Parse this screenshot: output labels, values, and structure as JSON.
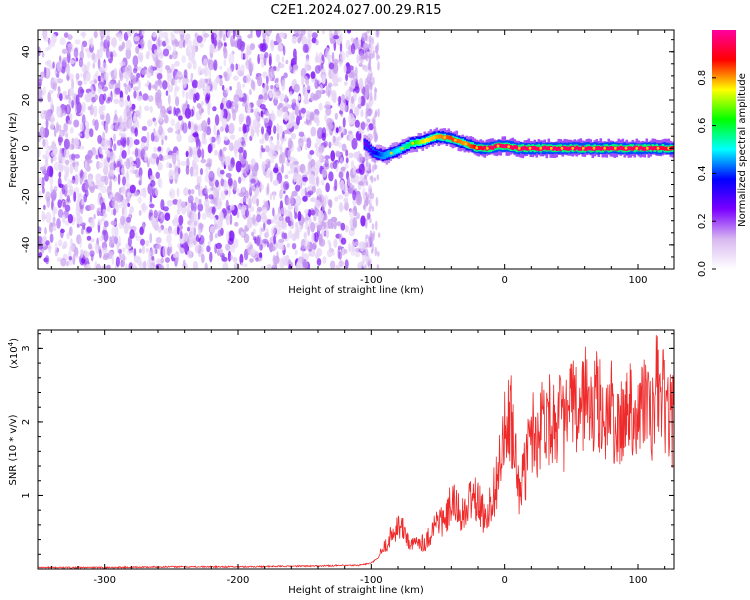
{
  "title": "C2E1.2024.027.00.29.R15",
  "chart_data": [
    {
      "type": "heatmap",
      "xlabel": "Height of straight line (km)",
      "ylabel": "Frequency (Hz)",
      "xlim": [
        -350,
        127
      ],
      "ylim": [
        -50,
        49
      ],
      "xticks": [
        -300,
        -200,
        -100,
        0,
        100
      ],
      "yticks": [
        -40,
        -20,
        0,
        20,
        40
      ],
      "noise_region_x": [
        -350,
        -100
      ],
      "ridge_line": {
        "x": [
          -105,
          -98,
          -90,
          -80,
          -70,
          -60,
          -50,
          -40,
          -30,
          -20,
          -12,
          -5,
          0,
          10,
          30,
          60,
          90,
          110,
          127
        ],
        "y": [
          2,
          -2,
          -3,
          -1,
          2,
          3,
          5,
          4,
          2,
          0,
          0,
          1,
          1,
          0,
          0,
          0,
          0,
          0,
          0
        ],
        "amplitude": [
          0.25,
          0.35,
          0.45,
          0.5,
          0.6,
          0.75,
          0.8,
          0.85,
          0.8,
          0.9,
          0.95,
          0.95,
          0.95,
          0.95,
          0.95,
          0.95,
          0.95,
          0.95,
          0.9
        ]
      },
      "colorbar": {
        "label": "Normalized spectral amplitude",
        "range": [
          0,
          1
        ],
        "ticks": [
          "0.0",
          "0.2",
          "0.4",
          "0.6",
          "0.8"
        ],
        "colors": [
          "#ffffff",
          "#d8b8f0",
          "#7b00ff",
          "#0000ff",
          "#00ffff",
          "#00ff00",
          "#ffff00",
          "#ff0000",
          "#ff00a0"
        ]
      }
    },
    {
      "type": "line",
      "xlabel": "Height of straight line (km)",
      "ylabel": "SNR (10 * v/v)",
      "y_multiplier_label": "(x10",
      "y_multiplier_exp": "4",
      "xlim": [
        -350,
        127
      ],
      "ylim": [
        0,
        3.25
      ],
      "xticks": [
        -300,
        -200,
        -100,
        0,
        100
      ],
      "yticks": [
        1,
        2,
        3
      ],
      "color": "#ee2a2a",
      "x": [
        -350,
        -300,
        -250,
        -200,
        -150,
        -110,
        -100,
        -95,
        -90,
        -85,
        -80,
        -75,
        -70,
        -65,
        -60,
        -55,
        -50,
        -45,
        -40,
        -35,
        -30,
        -25,
        -20,
        -15,
        -10,
        -5,
        0,
        5,
        10,
        15,
        20,
        25,
        30,
        35,
        40,
        45,
        50,
        55,
        60,
        65,
        70,
        75,
        80,
        85,
        90,
        95,
        100,
        105,
        110,
        115,
        120,
        125
      ],
      "y": [
        0.02,
        0.02,
        0.03,
        0.03,
        0.04,
        0.05,
        0.08,
        0.15,
        0.3,
        0.45,
        0.6,
        0.5,
        0.3,
        0.4,
        0.35,
        0.5,
        0.7,
        0.6,
        0.9,
        0.8,
        0.7,
        1.0,
        0.9,
        0.7,
        0.9,
        1.3,
        1.8,
        2.0,
        1.1,
        1.3,
        1.9,
        1.8,
        2.2,
        2.0,
        2.1,
        1.9,
        2.3,
        2.0,
        2.4,
        2.1,
        2.3,
        2.0,
        2.2,
        1.8,
        2.1,
        2.3,
        2.0,
        2.4,
        1.9,
        2.6,
        2.2,
        2.0
      ]
    }
  ]
}
